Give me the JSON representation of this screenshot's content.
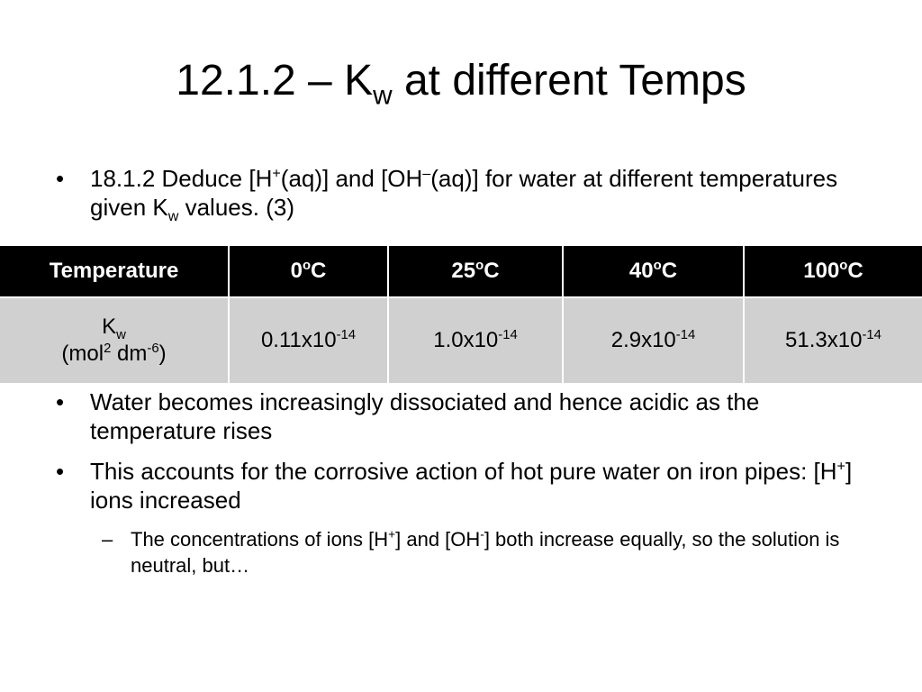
{
  "title": [
    "12.1.2 – K",
    {
      "sub": "w"
    },
    " at different Temps"
  ],
  "intro": [
    "18.1.2 Deduce [H",
    {
      "sup": "+"
    },
    "(aq)] and [OH",
    {
      "sup": "–"
    },
    "(aq)] for water at different temperatures given K",
    {
      "sub": "w"
    },
    " values. (3)"
  ],
  "table": {
    "header": [
      [
        "Temperature"
      ],
      [
        "0",
        {
          "sup": "o"
        },
        "C"
      ],
      [
        "25",
        {
          "sup": "o"
        },
        "C"
      ],
      [
        "40",
        {
          "sup": "o"
        },
        "C"
      ],
      [
        "100",
        {
          "sup": "o"
        },
        "C"
      ]
    ],
    "row": [
      {
        "lines": [
          [
            "K",
            {
              "sub": "w"
            }
          ],
          [
            "(mol",
            {
              "sup": "2"
            },
            " dm",
            {
              "sup": "-6"
            },
            ")"
          ]
        ]
      },
      [
        "0.11x10",
        {
          "sup": "-14"
        }
      ],
      [
        "1.0x10",
        {
          "sup": "-14"
        }
      ],
      [
        "2.9x10",
        {
          "sup": "-14"
        }
      ],
      [
        "51.3x10",
        {
          "sup": "-14"
        }
      ]
    ]
  },
  "bullets": [
    [
      "Water becomes increasingly dissociated and hence acidic as the temperature rises"
    ],
    [
      "This accounts for the corrosive action of hot pure water on iron pipes: [H",
      {
        "sup": "+"
      },
      "] ions increased"
    ]
  ],
  "subbullet": [
    "The concentrations of ions [H",
    {
      "sup": "+"
    },
    "] and [OH",
    {
      "sup": "-"
    },
    "] both increase equally, so the solution is neutral, but…"
  ]
}
